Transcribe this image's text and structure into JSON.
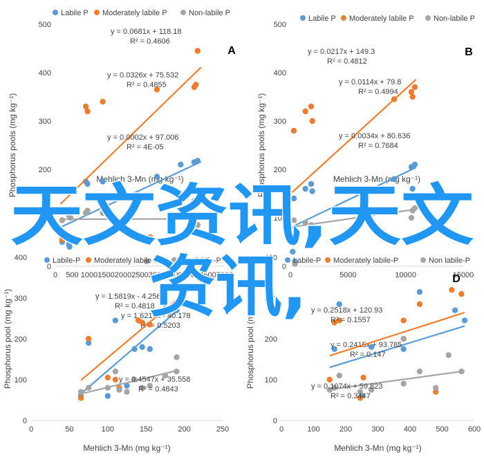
{
  "colors": {
    "labile": "#5b9bd5",
    "moderately_labile": "#ed7d31",
    "non_labile": "#a5a5a5",
    "axis": "#d9d9d9",
    "text": "#404040",
    "watermark": "#2196f3"
  },
  "watermark": {
    "line1": "天文资讯,天文",
    "line2": "资讯,"
  },
  "chart_data": [
    {
      "type": "scatter",
      "panel_label": "A",
      "title": "",
      "xlabel": "Mehlich 3-Mn (mg kg⁻¹)",
      "ylabel": "Phosphorus pools (mg kg⁻¹)",
      "xlim": [
        0,
        5000
      ],
      "ylim": [
        0,
        500
      ],
      "xticks": [
        0,
        500,
        1000,
        1500,
        2000,
        2500,
        3000,
        3500,
        4000,
        4500,
        5000
      ],
      "yticks": [
        0,
        100,
        200,
        300,
        400,
        500
      ],
      "grid": false,
      "legend_position": "top",
      "series": [
        {
          "name": "Labile P",
          "color_key": "labile",
          "points": [
            [
              200,
              50
            ],
            [
              400,
              45
            ],
            [
              420,
              40
            ],
            [
              900,
              175
            ],
            [
              950,
              170
            ],
            [
              1400,
              175
            ],
            [
              3000,
              185
            ],
            [
              3700,
              210
            ],
            [
              4100,
              215
            ],
            [
              4200,
              218
            ]
          ],
          "trendline": {
            "slope": 0.0326,
            "intercept": 75.532,
            "x_range": [
              150,
              4300
            ]
          },
          "equation": "y = 0.0326x + 75.532",
          "r2": "R² = 0.4855"
        },
        {
          "name": "Moderately labile P",
          "color_key": "moderately_labile",
          "points": [
            [
              200,
              55
            ],
            [
              450,
              60
            ],
            [
              900,
              330
            ],
            [
              950,
              320
            ],
            [
              1400,
              340
            ],
            [
              2800,
              60
            ],
            [
              3000,
              365
            ],
            [
              4100,
              370
            ],
            [
              4150,
              375
            ],
            [
              4200,
              445
            ]
          ],
          "trendline": {
            "slope": 0.0681,
            "intercept": 118.18,
            "x_range": [
              150,
              4300
            ]
          },
          "equation": "y = 0.0681x + 118.18",
          "r2": "R² = 0.4606"
        },
        {
          "name": "Non-labile P",
          "color_key": "non_labile",
          "points": [
            [
              200,
              95
            ],
            [
              400,
              105
            ],
            [
              450,
              100
            ],
            [
              900,
              110
            ],
            [
              950,
              115
            ],
            [
              1400,
              110
            ],
            [
              2700,
              10
            ],
            [
              3000,
              15
            ],
            [
              3600,
              155
            ],
            [
              4100,
              135
            ],
            [
              4200,
              85
            ]
          ],
          "trendline": {
            "slope": 0.0002,
            "intercept": 97.006,
            "x_range": [
              150,
              4300
            ]
          },
          "equation": "y = 0.0002x + 97.006",
          "r2": "R² = 4E-05"
        }
      ]
    },
    {
      "type": "scatter",
      "panel_label": "B",
      "title": "",
      "xlabel": "Mehlich 3-Mn (mg kg⁻¹)",
      "ylabel": "Phosphorus pools (mg kg⁻¹)",
      "xlim": [
        0,
        15000
      ],
      "ylim": [
        0,
        500
      ],
      "xticks": [
        0,
        5000,
        10000,
        15000
      ],
      "yticks": [
        0,
        100,
        200,
        300,
        400,
        500
      ],
      "grid": false,
      "legend_position": "top",
      "series": [
        {
          "name": "Labile P",
          "color_key": "labile",
          "points": [
            [
              200,
              30
            ],
            [
              300,
              140
            ],
            [
              400,
              10
            ],
            [
              1300,
              160
            ],
            [
              1800,
              170
            ],
            [
              1900,
              155
            ],
            [
              9000,
              180
            ],
            [
              10500,
              205
            ],
            [
              10600,
              160
            ],
            [
              10800,
              210
            ]
          ],
          "trendline": {
            "slope": 0.0114,
            "intercept": 79.8,
            "x_range": [
              150,
              10900
            ]
          },
          "equation": "y = 0.0114x + 79.8",
          "r2": "R² = 0.4994"
        },
        {
          "name": "Moderately labile P",
          "color_key": "moderately_labile",
          "points": [
            [
              200,
              60
            ],
            [
              300,
              280
            ],
            [
              400,
              50
            ],
            [
              1300,
              320
            ],
            [
              1800,
              330
            ],
            [
              1900,
              300
            ],
            [
              9000,
              345
            ],
            [
              10500,
              360
            ],
            [
              10600,
              350
            ],
            [
              10800,
              370
            ]
          ],
          "trendline": {
            "slope": 0.0217,
            "intercept": 149.3,
            "x_range": [
              150,
              10900
            ]
          },
          "equation": "y = 0.0217x + 149.3",
          "r2": "R² = 0.4812"
        },
        {
          "name": "Non-labile P",
          "color_key": "non_labile",
          "points": [
            [
              200,
              75
            ],
            [
              300,
              95
            ],
            [
              400,
              5
            ],
            [
              1300,
              90
            ],
            [
              1800,
              85
            ],
            [
              9000,
              115
            ],
            [
              10500,
              100
            ],
            [
              10600,
              115
            ],
            [
              10800,
              120
            ]
          ],
          "trendline": {
            "slope": 0.0034,
            "intercept": 80.636,
            "x_range": [
              150,
              10900
            ]
          },
          "equation": "y = 0.0034x + 80.636",
          "r2": "R² = 0.7684"
        }
      ]
    },
    {
      "type": "scatter",
      "panel_label": "",
      "title": "",
      "xlabel": "Mehlich 3-Mn (mg kg⁻¹)",
      "ylabel": "Phosphorus pool (mg kg⁻¹)",
      "xlim": [
        0,
        250
      ],
      "ylim": [
        0,
        400
      ],
      "xticks": [
        0,
        50,
        100,
        150,
        200,
        250
      ],
      "yticks": [
        0,
        100,
        200,
        300,
        400
      ],
      "grid": false,
      "legend_position": "top",
      "series": [
        {
          "name": "Labile-P",
          "color_key": "labile",
          "points": [
            [
              65,
              60
            ],
            [
              75,
              190
            ],
            [
              100,
              60
            ],
            [
              110,
              245
            ],
            [
              125,
              85
            ],
            [
              135,
              175
            ],
            [
              145,
              180
            ],
            [
              155,
              175
            ],
            [
              175,
              285
            ],
            [
              190,
              270
            ]
          ],
          "trendline": {
            "slope": 1.6219,
            "intercept": -40.178,
            "x_range": [
              65,
              190
            ]
          },
          "equation": "y = 1.6219x - 40.178",
          "r2": "R² = 0.5203"
        },
        {
          "name": "Moderately labile-P",
          "color_key": "moderately_labile",
          "points": [
            [
              65,
              55
            ],
            [
              75,
              200
            ],
            [
              100,
              105
            ],
            [
              110,
              100
            ],
            [
              115,
              80
            ],
            [
              140,
              245
            ],
            [
              145,
              240
            ],
            [
              155,
              235
            ],
            [
              175,
              290
            ],
            [
              190,
              285
            ]
          ],
          "trendline": {
            "slope": 1.5819,
            "intercept": -4.256,
            "x_range": [
              65,
              190
            ]
          },
          "equation": "y = 1.5819x - 4.256",
          "r2": "R² = 0.4818"
        },
        {
          "name": "Non labile-P",
          "color_key": "non_labile",
          "points": [
            [
              65,
              70
            ],
            [
              75,
              80
            ],
            [
              100,
              80
            ],
            [
              110,
              120
            ],
            [
              115,
              75
            ],
            [
              125,
              70
            ],
            [
              135,
              100
            ],
            [
              145,
              80
            ],
            [
              155,
              85
            ],
            [
              175,
              110
            ],
            [
              190,
              155
            ],
            [
              190,
              120
            ]
          ],
          "trendline": {
            "slope": 0.4547,
            "intercept": 35.558,
            "x_range": [
              65,
              190
            ]
          },
          "equation": "y = 0.4547x + 35.558",
          "r2": "R² = 0.4843"
        }
      ]
    },
    {
      "type": "scatter",
      "panel_label": "D",
      "title": "",
      "xlabel": "Mehlich 3-Mn (mg kg⁻¹)",
      "ylabel": "Phosphorus pool (mg kg⁻¹)",
      "xlim": [
        0,
        600
      ],
      "ylim": [
        0,
        400
      ],
      "xticks": [
        0,
        100,
        200,
        300,
        400,
        500,
        600
      ],
      "yticks": [
        0,
        100,
        200,
        300,
        400
      ],
      "grid": false,
      "legend_position": "top",
      "series": [
        {
          "name": "Labile-P",
          "color_key": "labile",
          "points": [
            [
              165,
              175
            ],
            [
              180,
              285
            ],
            [
              250,
              60
            ],
            [
              280,
              180
            ],
            [
              380,
              175
            ],
            [
              430,
              315
            ],
            [
              540,
              270
            ],
            [
              570,
              245
            ]
          ],
          "trendline": {
            "slope": 0.2415,
            "intercept": 93.785,
            "x_range": [
              150,
              570
            ]
          },
          "equation": "y = 0.2415x + 93.785",
          "r2": "R² = 0.147"
        },
        {
          "name": "Moderately labile-P",
          "color_key": "moderately_labile",
          "points": [
            [
              150,
              100
            ],
            [
              165,
              240
            ],
            [
              180,
              245
            ],
            [
              245,
              55
            ],
            [
              255,
              105
            ],
            [
              380,
              245
            ],
            [
              380,
              200
            ],
            [
              430,
              285
            ],
            [
              480,
              70
            ],
            [
              530,
              320
            ],
            [
              560,
              310
            ]
          ],
          "trendline": {
            "slope": 0.2518,
            "intercept": 120.93,
            "x_range": [
              150,
              570
            ]
          },
          "equation": "y = 0.2518x + 120.93",
          "r2": "R² = 0.1557"
        },
        {
          "name": "Non labile-P",
          "color_key": "non_labile",
          "points": [
            [
              150,
              75
            ],
            [
              165,
              80
            ],
            [
              180,
              110
            ],
            [
              245,
              70
            ],
            [
              280,
              75
            ],
            [
              380,
              90
            ],
            [
              380,
              200
            ],
            [
              430,
              120
            ],
            [
              480,
              80
            ],
            [
              520,
              160
            ],
            [
              560,
              120
            ]
          ],
          "trendline": {
            "slope": 0.1074,
            "intercept": 59.823,
            "x_range": [
              150,
              570
            ]
          },
          "equation": "y = 0.1074x + 59.823",
          "r2": "R² = 0.3447"
        }
      ]
    }
  ]
}
